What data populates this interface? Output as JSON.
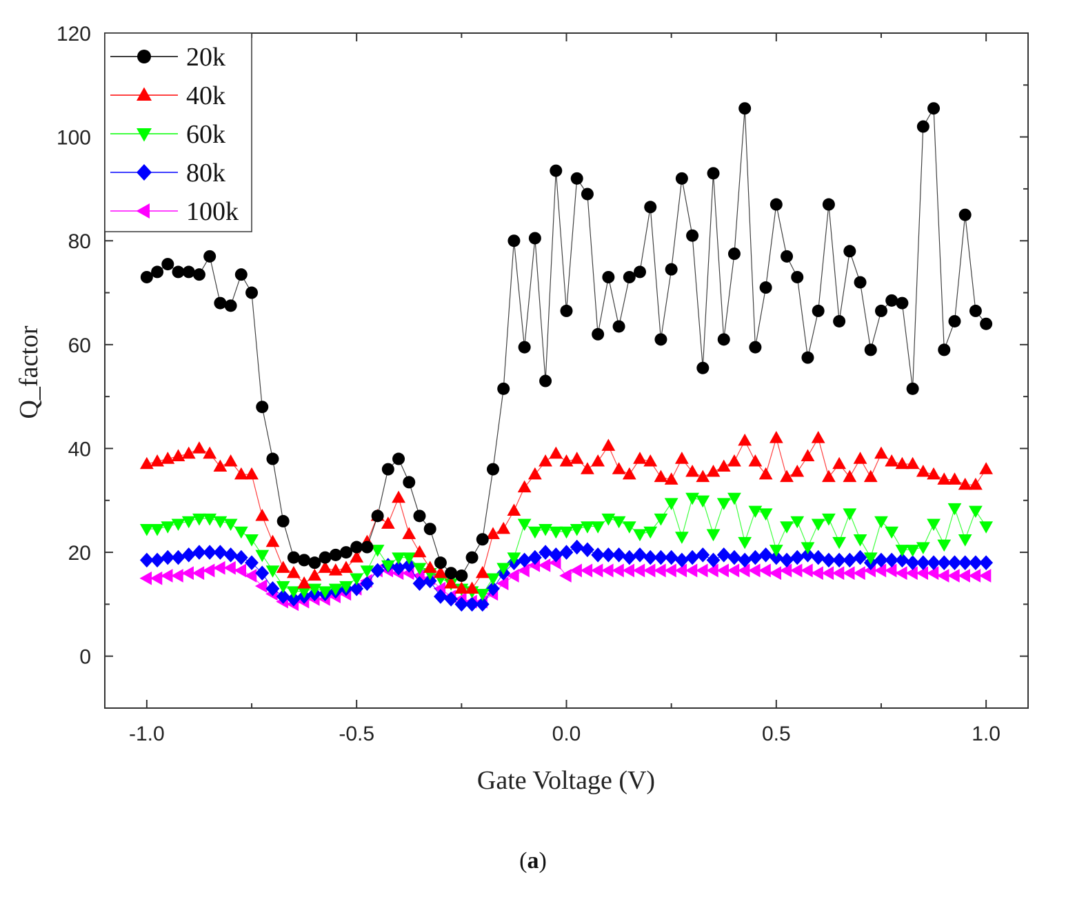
{
  "chart_data": {
    "type": "line",
    "xlabel": "Gate Voltage (V)",
    "ylabel": "Q_factor",
    "xlim": [
      -1.1,
      1.1
    ],
    "ylim": [
      -10,
      120
    ],
    "xticks": [
      -1.0,
      -0.5,
      0.0,
      0.5,
      1.0
    ],
    "xtick_labels": [
      "-1.0",
      "-0.5",
      "0.0",
      "0.5",
      "1.0"
    ],
    "yticks": [
      0,
      20,
      40,
      60,
      80,
      100,
      120
    ],
    "ytick_labels": [
      "0",
      "20",
      "40",
      "60",
      "80",
      "100",
      "120"
    ],
    "legend_position": "top-left",
    "x": [
      -1.0,
      -0.975,
      -0.95,
      -0.925,
      -0.9,
      -0.875,
      -0.85,
      -0.825,
      -0.8,
      -0.775,
      -0.75,
      -0.725,
      -0.7,
      -0.675,
      -0.65,
      -0.625,
      -0.6,
      -0.575,
      -0.55,
      -0.525,
      -0.5,
      -0.475,
      -0.45,
      -0.425,
      -0.4,
      -0.375,
      -0.35,
      -0.325,
      -0.3,
      -0.275,
      -0.25,
      -0.225,
      -0.2,
      -0.175,
      -0.15,
      -0.125,
      -0.1,
      -0.075,
      -0.05,
      -0.025,
      0.0,
      0.025,
      0.05,
      0.075,
      0.1,
      0.125,
      0.15,
      0.175,
      0.2,
      0.225,
      0.25,
      0.275,
      0.3,
      0.325,
      0.35,
      0.375,
      0.4,
      0.425,
      0.45,
      0.475,
      0.5,
      0.525,
      0.55,
      0.575,
      0.6,
      0.625,
      0.65,
      0.675,
      0.7,
      0.725,
      0.75,
      0.775,
      0.8,
      0.825,
      0.85,
      0.875,
      0.9,
      0.925,
      0.95,
      0.975,
      1.0
    ],
    "series": [
      {
        "name": "20k",
        "color": "#000000",
        "marker": "circle",
        "values": [
          73,
          74,
          75.5,
          74,
          74,
          73.5,
          77,
          68,
          67.5,
          73.5,
          70,
          48,
          38,
          26,
          19,
          18.5,
          18,
          19,
          19.5,
          20,
          21,
          21,
          27,
          36,
          38,
          33.5,
          27,
          24.5,
          18,
          16,
          15.5,
          19,
          22.5,
          36,
          51.5,
          80,
          59.5,
          80.5,
          53,
          93.5,
          66.5,
          92,
          89,
          62,
          73,
          63.5,
          73,
          74,
          86.5,
          61,
          74.5,
          92,
          81,
          55.5,
          93,
          61,
          77.5,
          105.5,
          59.5,
          71,
          87,
          77,
          73,
          57.5,
          66.5,
          87,
          64.5,
          78,
          72,
          59,
          66.5,
          68.5,
          68,
          51.5,
          102,
          105.5,
          59,
          64.5,
          85,
          66.5,
          64
        ]
      },
      {
        "name": "40k",
        "color": "#ff0000",
        "marker": "triangle-up",
        "values": [
          37,
          37.5,
          38,
          38.5,
          39,
          40,
          39,
          36.5,
          37.5,
          35,
          35,
          27,
          22,
          17,
          16,
          14,
          15.5,
          17,
          16.5,
          17,
          19,
          22,
          27,
          25.5,
          30.5,
          23.5,
          20,
          17,
          16,
          14,
          13,
          13,
          16,
          23.5,
          24.5,
          28,
          32.5,
          35,
          37.5,
          39,
          37.5,
          38,
          36,
          37.5,
          40.5,
          36,
          35,
          38,
          37.5,
          34.5,
          34,
          38,
          35.5,
          34.5,
          35.5,
          36.5,
          37.5,
          41.5,
          37.5,
          35,
          42,
          34.5,
          35.5,
          38.5,
          42,
          34.5,
          37,
          34.5,
          38,
          34.5,
          39,
          37.5,
          37,
          37,
          35.5,
          35,
          34,
          34,
          33,
          33,
          36
        ]
      },
      {
        "name": "60k",
        "color": "#00ff00",
        "marker": "triangle-down",
        "values": [
          24.5,
          24.5,
          25,
          25.5,
          26,
          26.5,
          26.5,
          26,
          25.5,
          24,
          22.5,
          19.5,
          16.5,
          13.5,
          12.5,
          12.5,
          13,
          12.5,
          13,
          13.5,
          15,
          16.5,
          20.5,
          17.5,
          19,
          19,
          17,
          16,
          15,
          14,
          13,
          12.5,
          12,
          15,
          17,
          19,
          25.5,
          24,
          24.5,
          24,
          24,
          24.5,
          25,
          25,
          26.5,
          26,
          25,
          23.5,
          24,
          26.5,
          29.5,
          23,
          30.5,
          30,
          23.5,
          29.5,
          30.5,
          22,
          28,
          27.5,
          20.5,
          25,
          26,
          21,
          25.5,
          26.5,
          22,
          27.5,
          22.5,
          19,
          26,
          24,
          20.5,
          20.5,
          21,
          25.5,
          21.5,
          28.5,
          22.5,
          28,
          25
        ]
      },
      {
        "name": "80k",
        "color": "#0000ff",
        "marker": "diamond",
        "values": [
          18.5,
          18.5,
          19,
          19,
          19.5,
          20,
          20,
          20,
          19.5,
          19,
          18,
          16,
          13,
          11.5,
          11,
          11.5,
          12,
          12,
          12.5,
          13,
          13,
          14,
          16.5,
          17.5,
          17,
          17.5,
          14,
          14.5,
          11.5,
          11,
          10,
          10,
          10,
          13,
          16,
          18,
          18.5,
          19,
          20,
          19.5,
          20,
          21,
          20.5,
          19.5,
          19.5,
          19.5,
          19,
          19.5,
          19,
          19,
          19,
          18.5,
          19,
          19.5,
          18.5,
          19.5,
          19,
          18.5,
          19,
          19.5,
          19,
          18.5,
          19,
          19.5,
          19,
          18.5,
          18.5,
          18.5,
          19,
          18,
          18.5,
          18.5,
          18.5,
          18,
          18,
          18,
          18,
          18,
          18,
          18,
          18
        ]
      },
      {
        "name": "100k",
        "color": "#ff00ff",
        "marker": "triangle-left",
        "values": [
          15,
          15,
          15.5,
          15.5,
          16,
          16,
          16.5,
          17,
          17,
          16.5,
          15.5,
          13.5,
          12,
          10.5,
          10,
          10.5,
          11,
          11,
          11.5,
          12,
          13,
          14.5,
          16.5,
          16.5,
          16,
          16,
          15.5,
          15,
          13,
          11.5,
          11,
          10.5,
          10.5,
          12,
          14,
          15.5,
          16.5,
          17.5,
          17.5,
          18,
          15.5,
          16.5,
          16.5,
          16.5,
          16.5,
          16.5,
          16.5,
          16.5,
          16.5,
          16.5,
          16.5,
          16.5,
          16.5,
          16.5,
          16.5,
          16.5,
          16.5,
          16.5,
          16.5,
          16.5,
          16,
          16.5,
          16.5,
          16.5,
          16,
          16,
          16,
          16,
          16,
          16.5,
          16.5,
          16.5,
          16,
          16,
          16,
          16,
          15.5,
          15.5,
          15.5,
          15.5,
          15.5
        ]
      }
    ]
  },
  "caption": {
    "label": "a"
  }
}
